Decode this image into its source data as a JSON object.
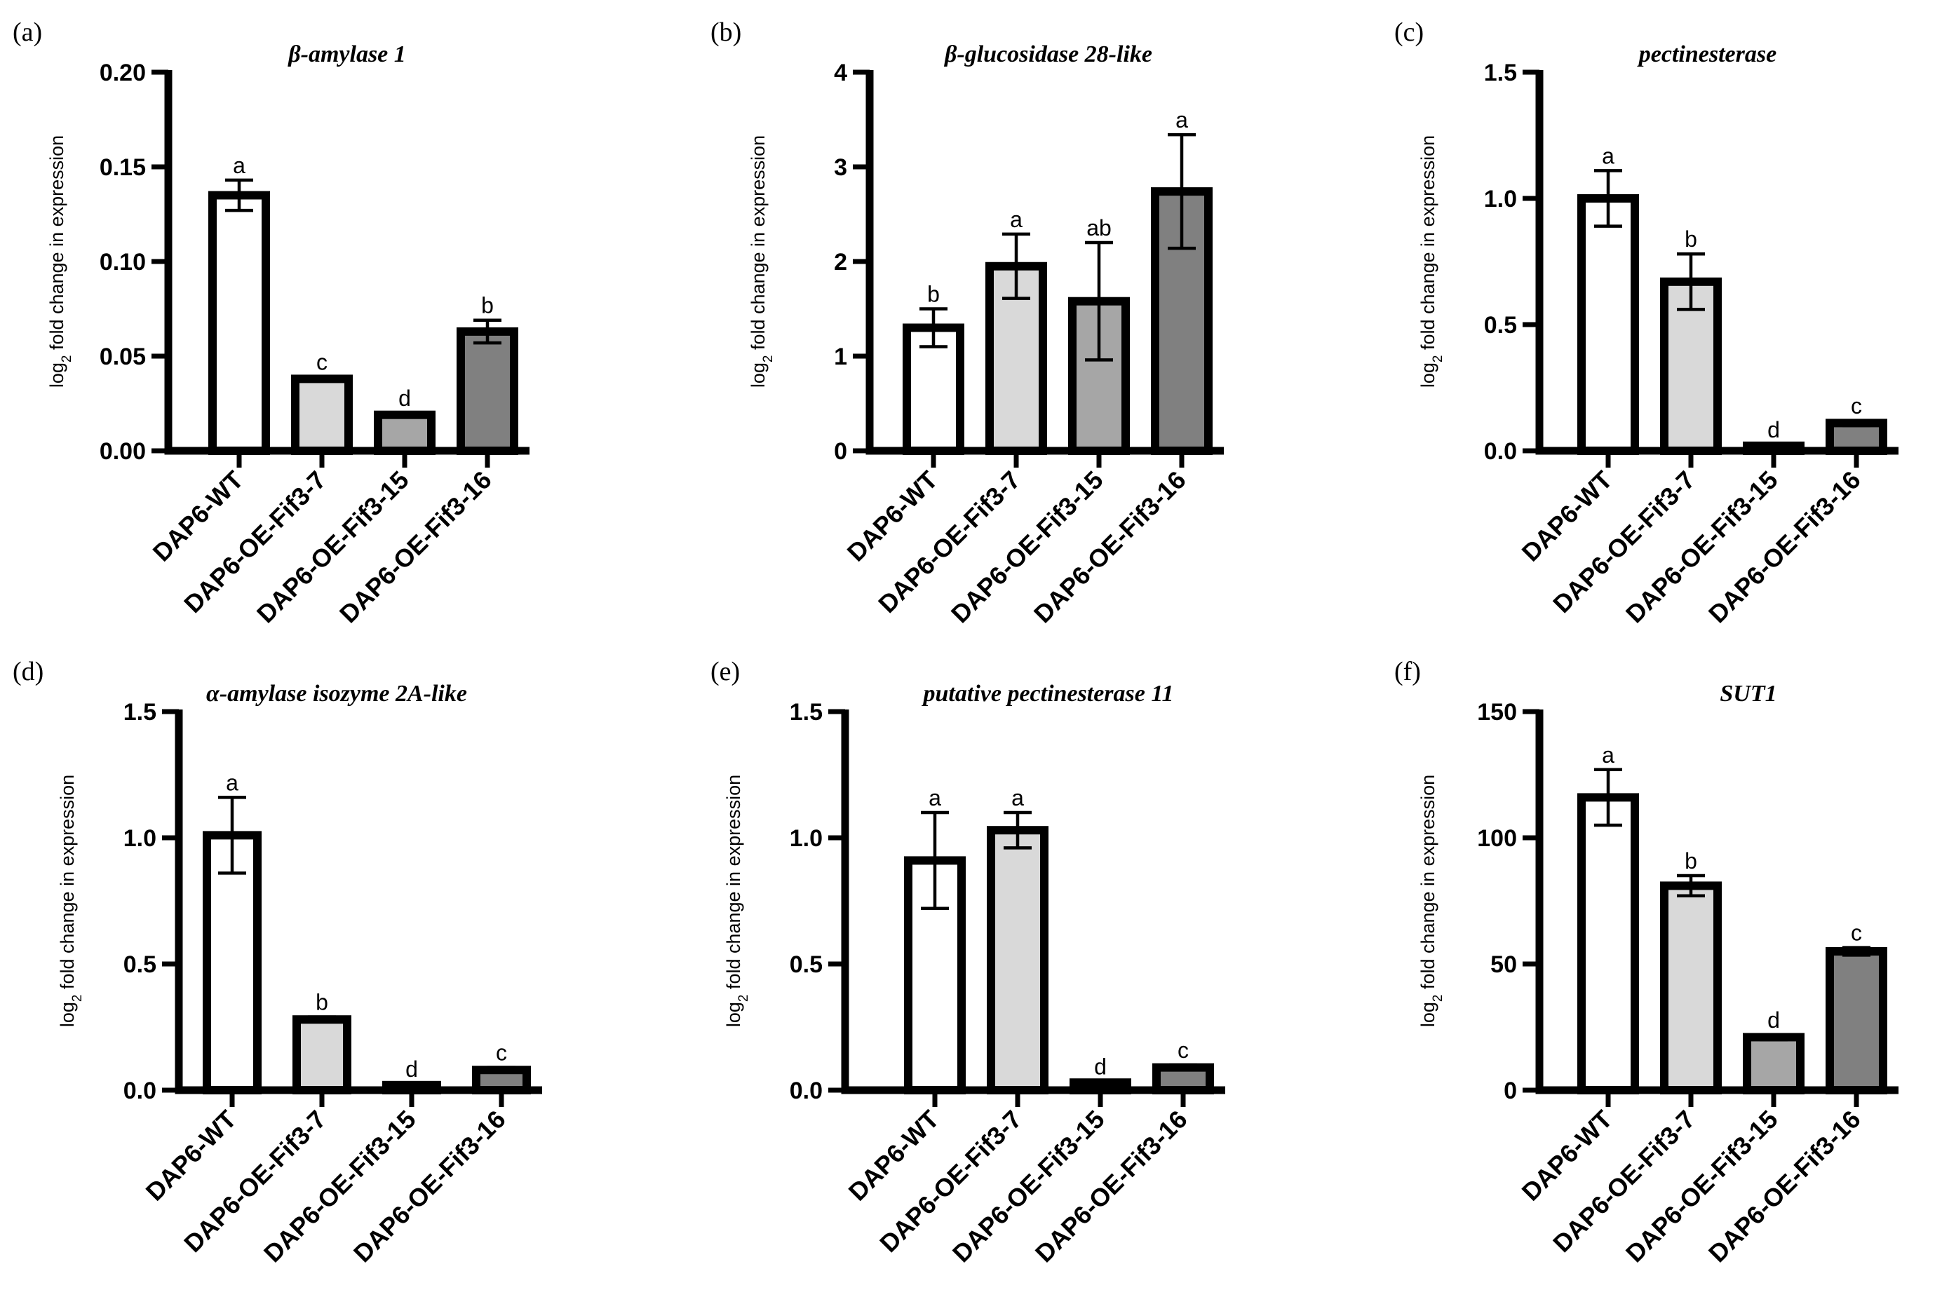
{
  "chart_data": [
    {
      "type": "bar",
      "panel": "(a)",
      "title": "β-amylase 1",
      "ylabel_main": "log",
      "ylabel_sub": "2",
      "ylabel_rest": " fold change in expression",
      "categories": [
        "DAP6-WT",
        "DAP6-OE-Fif3-7",
        "DAP6-OE-Fif3-15",
        "DAP6-OE-Fif3-16"
      ],
      "values": [
        0.135,
        0.038,
        0.019,
        0.063
      ],
      "errors": [
        0.008,
        0.001,
        0.001,
        0.006
      ],
      "letters": [
        "a",
        "c",
        "d",
        "b"
      ],
      "ylim": [
        0,
        0.2
      ],
      "yticks": [
        0,
        0.05,
        0.1,
        0.15,
        0.2
      ],
      "yticklabels": [
        "0.00",
        "0.05",
        "0.10",
        "0.15",
        "0.20"
      ],
      "colors": [
        "#ffffff",
        "#d9d9d9",
        "#a6a6a6",
        "#808080"
      ]
    },
    {
      "type": "bar",
      "panel": "(b)",
      "title": "β-glucosidase 28-like",
      "ylabel_main": "log",
      "ylabel_sub": "2",
      "ylabel_rest": " fold change in expression",
      "categories": [
        "DAP6-WT",
        "DAP6-OE-Fif3-7",
        "DAP6-OE-Fif3-15",
        "DAP6-OE-Fif3-16"
      ],
      "values": [
        1.3,
        1.95,
        1.58,
        2.74
      ],
      "errors": [
        0.2,
        0.34,
        0.62,
        0.6
      ],
      "letters": [
        "b",
        "a",
        "ab",
        "a"
      ],
      "ylim": [
        0,
        4
      ],
      "yticks": [
        0,
        1,
        2,
        3,
        4
      ],
      "yticklabels": [
        "0",
        "1",
        "2",
        "3",
        "4"
      ],
      "colors": [
        "#ffffff",
        "#d9d9d9",
        "#a6a6a6",
        "#808080"
      ]
    },
    {
      "type": "bar",
      "panel": "(c)",
      "title": "pectinesterase",
      "ylabel_main": "log",
      "ylabel_sub": "2",
      "ylabel_rest": " fold change in expression",
      "categories": [
        "DAP6-WT",
        "DAP6-OE-Fif3-7",
        "DAP6-OE-Fif3-15",
        "DAP6-OE-Fif3-16"
      ],
      "values": [
        1.0,
        0.67,
        0.02,
        0.11
      ],
      "errors": [
        0.11,
        0.11,
        0.005,
        0.01
      ],
      "letters": [
        "a",
        "b",
        "d",
        "c"
      ],
      "ylim": [
        0,
        1.5
      ],
      "yticks": [
        0,
        0.5,
        1.0,
        1.5
      ],
      "yticklabels": [
        "0.0",
        "0.5",
        "1.0",
        "1.5"
      ],
      "colors": [
        "#ffffff",
        "#d9d9d9",
        "#a6a6a6",
        "#808080"
      ]
    },
    {
      "type": "bar",
      "panel": "(d)",
      "title": "α-amylase isozyme 2A-like",
      "ylabel_main": "log",
      "ylabel_sub": "2",
      "ylabel_rest": " fold change in expression",
      "categories": [
        "DAP6-WT",
        "DAP6-OE-Fif3-7",
        "DAP6-OE-Fif3-15",
        "DAP6-OE-Fif3-16"
      ],
      "values": [
        1.01,
        0.28,
        0.02,
        0.08
      ],
      "errors": [
        0.15,
        0.01,
        0.005,
        0.01
      ],
      "letters": [
        "a",
        "b",
        "d",
        "c"
      ],
      "ylim": [
        0,
        1.5
      ],
      "yticks": [
        0,
        0.5,
        1.0,
        1.5
      ],
      "yticklabels": [
        "0.0",
        "0.5",
        "1.0",
        "1.5"
      ],
      "colors": [
        "#ffffff",
        "#d9d9d9",
        "#a6a6a6",
        "#808080"
      ]
    },
    {
      "type": "bar",
      "panel": "(e)",
      "title": "putative pectinesterase 11",
      "ylabel_main": "log",
      "ylabel_sub": "2",
      "ylabel_rest": " fold change in expression",
      "categories": [
        "DAP6-WT",
        "DAP6-OE-Fif3-7",
        "DAP6-OE-Fif3-15",
        "DAP6-OE-Fif3-16"
      ],
      "values": [
        0.91,
        1.03,
        0.03,
        0.09
      ],
      "errors": [
        0.19,
        0.07,
        0.005,
        0.01
      ],
      "letters": [
        "a",
        "a",
        "d",
        "c"
      ],
      "ylim": [
        0,
        1.5
      ],
      "yticks": [
        0,
        0.5,
        1.0,
        1.5
      ],
      "yticklabels": [
        "0.0",
        "0.5",
        "1.0",
        "1.5"
      ],
      "colors": [
        "#ffffff",
        "#d9d9d9",
        "#a6a6a6",
        "#808080"
      ]
    },
    {
      "type": "bar",
      "panel": "(f)",
      "title": "SUT1",
      "ylabel_main": "log",
      "ylabel_sub": "2",
      "ylabel_rest": " fold change in expression",
      "categories": [
        "DAP6-WT",
        "DAP6-OE-Fif3-7",
        "DAP6-OE-Fif3-15",
        "DAP6-OE-Fif3-16"
      ],
      "values": [
        116,
        81,
        21,
        55
      ],
      "errors": [
        11,
        4,
        1,
        1.5
      ],
      "letters": [
        "a",
        "b",
        "d",
        "c"
      ],
      "ylim": [
        0,
        150
      ],
      "yticks": [
        0,
        50,
        100,
        150
      ],
      "yticklabels": [
        "0",
        "50",
        "100",
        "150"
      ],
      "colors": [
        "#ffffff",
        "#d9d9d9",
        "#a6a6a6",
        "#808080"
      ]
    }
  ]
}
